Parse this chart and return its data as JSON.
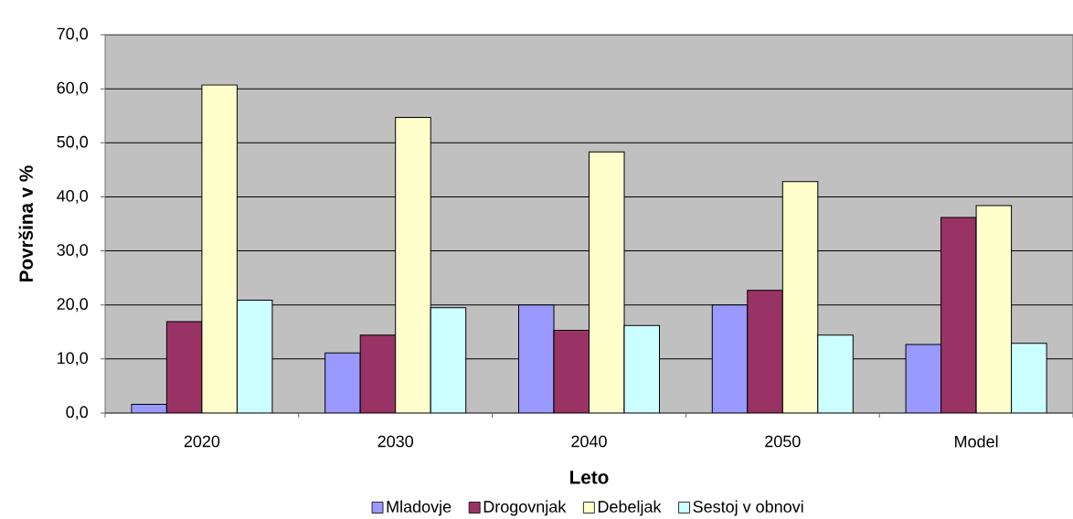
{
  "chart_data": {
    "type": "bar",
    "categories": [
      "2020",
      "2030",
      "2040",
      "2050",
      "Model"
    ],
    "xlabel": "Leto",
    "ylabel": "Površina v %",
    "series": [
      {
        "name": "Mladovje",
        "color": "#9999ff",
        "values": [
          1.6,
          11.1,
          20.0,
          20.0,
          12.7
        ]
      },
      {
        "name": "Drogovnjak",
        "color": "#993366",
        "values": [
          16.9,
          14.4,
          15.3,
          22.7,
          36.2
        ]
      },
      {
        "name": "Debeljak",
        "color": "#ffffcc",
        "values": [
          60.7,
          54.7,
          48.3,
          42.8,
          38.4
        ]
      },
      {
        "name": "Sestoj v obnovi",
        "color": "#ccffff",
        "values": [
          20.9,
          19.5,
          16.2,
          14.4,
          12.9
        ]
      }
    ],
    "ylim": [
      0,
      70
    ],
    "yticks": [
      {
        "value": 0,
        "label": "0,0"
      },
      {
        "value": 10,
        "label": "10,0"
      },
      {
        "value": 20,
        "label": "20,0"
      },
      {
        "value": 30,
        "label": "30,0"
      },
      {
        "value": 40,
        "label": "40,0"
      },
      {
        "value": 50,
        "label": "50,0"
      },
      {
        "value": 60,
        "label": "60,0"
      },
      {
        "value": 70,
        "label": "70,0"
      }
    ],
    "grid": "y",
    "legend": "bottom"
  }
}
